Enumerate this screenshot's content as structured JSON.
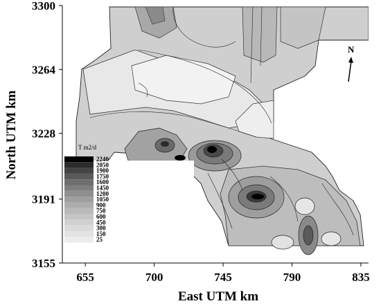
{
  "chart_data": {
    "type": "heatmap",
    "title": "",
    "xlabel": "East UTM km",
    "ylabel": "North UTM km",
    "x_ticks": [
      "655",
      "700",
      "745",
      "790",
      "835"
    ],
    "y_ticks": [
      "3155",
      "3191",
      "3228",
      "3264",
      "3300"
    ],
    "xlim": [
      640,
      840
    ],
    "ylim": [
      3155,
      3300
    ],
    "legend": {
      "title": "T m2/d",
      "placement": "left, middle",
      "levels": [
        "2240",
        "2050",
        "1900",
        "1750",
        "1600",
        "1450",
        "1200",
        "1050",
        "900",
        "750",
        "600",
        "450",
        "300",
        "150",
        "25"
      ],
      "colors": [
        "#000000",
        "#2b2b2b",
        "#444444",
        "#5a5a5a",
        "#6e6e6e",
        "#7f7f7f",
        "#8f8f8f",
        "#9e9e9e",
        "#acacac",
        "#b9b9b9",
        "#c5c5c5",
        "#d0d0d0",
        "#dadada",
        "#e3e3e3",
        "#ececec"
      ]
    },
    "north_arrow": "N",
    "high_zones": [
      {
        "x": 745,
        "y": 3222,
        "label": "2240"
      },
      {
        "x": 771,
        "y": 3190,
        "label": "2240"
      },
      {
        "x": 724,
        "y": 3216,
        "label": "2240"
      },
      {
        "x": 712,
        "y": 3224,
        "label": "1900"
      },
      {
        "x": 808,
        "y": 3170,
        "label": "1600"
      }
    ]
  }
}
